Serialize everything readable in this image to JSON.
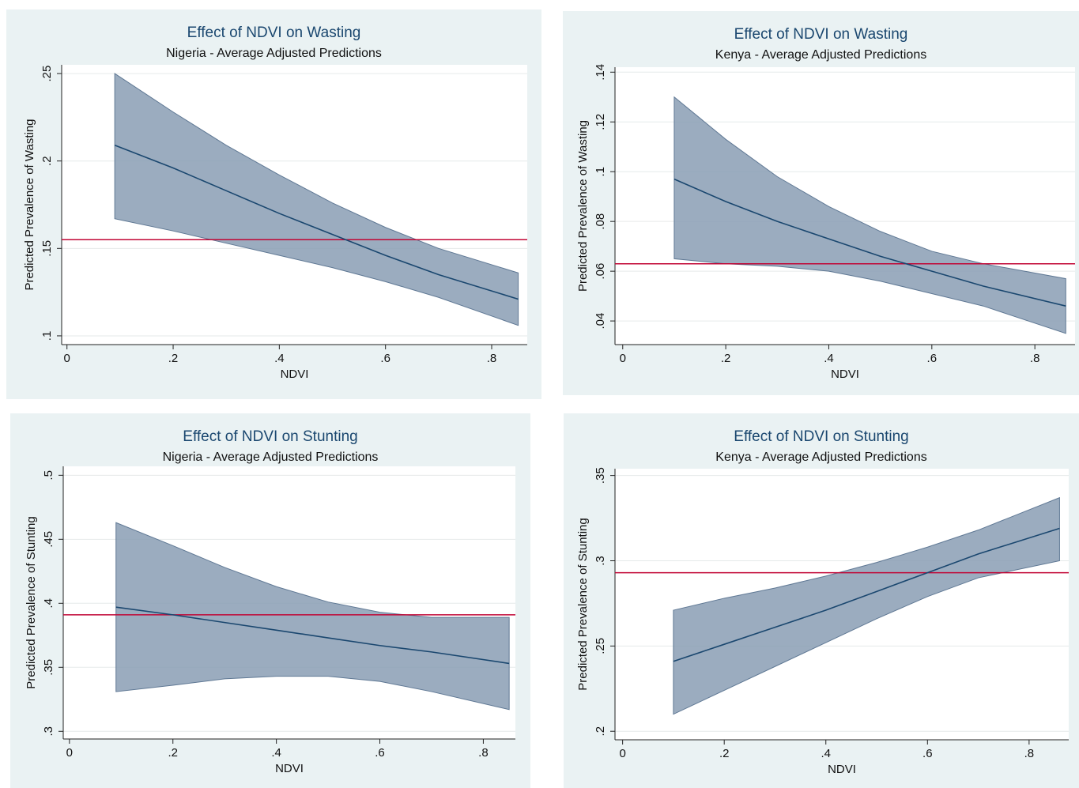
{
  "chart_data": [
    {
      "type": "line",
      "title": "Effect of NDVI on Wasting",
      "subtitle": "Nigeria - Average Adjusted Predictions",
      "x_label": "NDVI",
      "y_label": "Predicted Prevalence of Wasting",
      "x": [
        0.09,
        0.2,
        0.3,
        0.4,
        0.5,
        0.6,
        0.7,
        0.85
      ],
      "values": [
        0.209,
        0.196,
        0.183,
        0.17,
        0.158,
        0.146,
        0.135,
        0.121
      ],
      "ci_upper": [
        0.25,
        0.228,
        0.209,
        0.192,
        0.176,
        0.162,
        0.15,
        0.136
      ],
      "ci_lower": [
        0.167,
        0.16,
        0.153,
        0.146,
        0.139,
        0.131,
        0.122,
        0.106
      ],
      "reference_line": 0.155,
      "color": "#1a476f",
      "band_color": "#8a9db4",
      "reference_color": "#c10534",
      "xlim": [
        -0.01,
        0.867
      ],
      "ylim": [
        0.095,
        0.255
      ],
      "xticks": [
        0,
        {
          "value": 0.2,
          "label": ".2"
        },
        {
          "value": 0.4,
          "label": ".4"
        },
        {
          "value": 0.6,
          "label": ".6"
        },
        {
          "value": 0.8,
          "label": ".8"
        }
      ],
      "yticks": [
        {
          "value": 0.1,
          "label": ".1"
        },
        {
          "value": 0.15,
          "label": ".15"
        },
        {
          "value": 0.2,
          "label": ".2"
        },
        {
          "value": 0.25,
          "label": ".25"
        }
      ],
      "grid": true
    },
    {
      "type": "line",
      "title": "Effect of NDVI on Wasting",
      "subtitle": "Kenya - Average Adjusted Predictions",
      "x_label": "NDVI",
      "y_label": "Predicted Prevalence of Wasting",
      "x": [
        0.1,
        0.2,
        0.3,
        0.4,
        0.5,
        0.6,
        0.7,
        0.86
      ],
      "values": [
        0.097,
        0.088,
        0.08,
        0.073,
        0.066,
        0.06,
        0.054,
        0.046
      ],
      "ci_upper": [
        0.13,
        0.113,
        0.098,
        0.086,
        0.076,
        0.068,
        0.063,
        0.057
      ],
      "ci_lower": [
        0.065,
        0.063,
        0.062,
        0.06,
        0.056,
        0.051,
        0.046,
        0.035
      ],
      "reference_line": 0.063,
      "color": "#1a476f",
      "band_color": "#8a9db4",
      "reference_color": "#c10534",
      "xlim": [
        -0.015,
        0.878
      ],
      "ylim": [
        0.0305,
        0.142
      ],
      "xticks": [
        0,
        {
          "value": 0.2,
          "label": ".2"
        },
        {
          "value": 0.4,
          "label": ".4"
        },
        {
          "value": 0.6,
          "label": ".6"
        },
        {
          "value": 0.8,
          "label": ".8"
        }
      ],
      "yticks": [
        {
          "value": 0.04,
          "label": ".04"
        },
        {
          "value": 0.06,
          "label": ".06"
        },
        {
          "value": 0.08,
          "label": ".08"
        },
        {
          "value": 0.1,
          "label": ".1"
        },
        {
          "value": 0.12,
          "label": ".12"
        },
        {
          "value": 0.14,
          "label": ".14"
        }
      ],
      "grid": true
    },
    {
      "type": "line",
      "title": "Effect of NDVI on Stunting",
      "subtitle": "Nigeria - Average Adjusted Predictions",
      "x_label": "NDVI",
      "y_label": "Predicted Prevalence of Stunting",
      "x": [
        0.09,
        0.2,
        0.3,
        0.4,
        0.5,
        0.6,
        0.7,
        0.85
      ],
      "values": [
        0.397,
        0.391,
        0.385,
        0.379,
        0.373,
        0.367,
        0.362,
        0.353
      ],
      "ci_upper": [
        0.463,
        0.445,
        0.428,
        0.413,
        0.401,
        0.393,
        0.389,
        0.389
      ],
      "ci_lower": [
        0.331,
        0.336,
        0.341,
        0.343,
        0.343,
        0.339,
        0.331,
        0.317
      ],
      "reference_line": 0.391,
      "color": "#1a476f",
      "band_color": "#8a9db4",
      "reference_color": "#c10534",
      "xlim": [
        -0.012,
        0.862
      ],
      "ylim": [
        0.294,
        0.507
      ],
      "xticks": [
        0,
        {
          "value": 0.2,
          "label": ".2"
        },
        {
          "value": 0.4,
          "label": ".4"
        },
        {
          "value": 0.6,
          "label": ".6"
        },
        {
          "value": 0.8,
          "label": ".8"
        }
      ],
      "yticks": [
        {
          "value": 0.3,
          "label": ".3"
        },
        {
          "value": 0.35,
          "label": ".35"
        },
        {
          "value": 0.4,
          "label": ".4"
        },
        {
          "value": 0.45,
          "label": ".45"
        },
        {
          "value": 0.5,
          "label": ".5"
        }
      ],
      "grid": true
    },
    {
      "type": "line",
      "title": "Effect of NDVI on Stunting",
      "subtitle": "Kenya - Average Adjusted Predictions",
      "x_label": "NDVI",
      "y_label": "Predicted Prevalence of Stunting",
      "x": [
        0.1,
        0.2,
        0.3,
        0.4,
        0.5,
        0.6,
        0.7,
        0.86
      ],
      "values": [
        0.241,
        0.251,
        0.261,
        0.271,
        0.282,
        0.293,
        0.304,
        0.319
      ],
      "ci_upper": [
        0.271,
        0.278,
        0.284,
        0.291,
        0.299,
        0.308,
        0.318,
        0.337
      ],
      "ci_lower": [
        0.21,
        0.224,
        0.238,
        0.252,
        0.266,
        0.279,
        0.29,
        0.3
      ],
      "reference_line": 0.293,
      "color": "#1a476f",
      "band_color": "#8a9db4",
      "reference_color": "#c10534",
      "xlim": [
        -0.015,
        0.878
      ],
      "ylim": [
        0.195,
        0.354
      ],
      "xticks": [
        0,
        {
          "value": 0.2,
          "label": ".2"
        },
        {
          "value": 0.4,
          "label": ".4"
        },
        {
          "value": 0.6,
          "label": ".6"
        },
        {
          "value": 0.8,
          "label": ".8"
        }
      ],
      "yticks": [
        {
          "value": 0.2,
          "label": ".2"
        },
        {
          "value": 0.25,
          "label": ".25"
        },
        {
          "value": 0.3,
          "label": ".3"
        },
        {
          "value": 0.35,
          "label": ".35"
        }
      ],
      "grid": true
    }
  ]
}
